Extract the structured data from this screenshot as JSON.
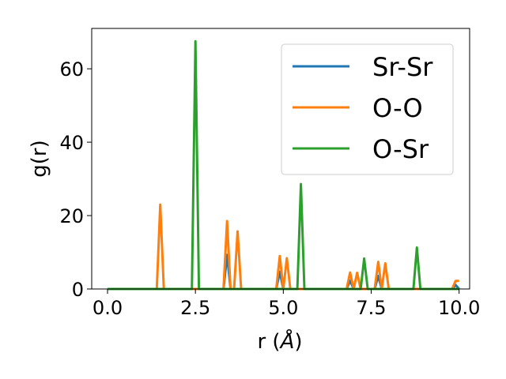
{
  "chart_data": {
    "type": "line",
    "xlabel_main": "r (",
    "xlabel_unit": "Å",
    "xlabel_close": ")",
    "ylabel": "g(r)",
    "xlim": [
      -0.45,
      10.3
    ],
    "ylim": [
      0,
      71
    ],
    "xticks": [
      0.0,
      2.5,
      5.0,
      7.5,
      10.0
    ],
    "xtick_labels": [
      "0.0",
      "2.5",
      "5.0",
      "7.5",
      "10.0"
    ],
    "yticks": [
      0,
      20,
      40,
      60
    ],
    "ytick_labels": [
      "0",
      "20",
      "40",
      "60"
    ],
    "grid": false,
    "legend_position": "top-right",
    "series": [
      {
        "name": "Sr-Sr",
        "color": "#1f77b4",
        "x": [
          0.0,
          3.3,
          3.4,
          3.5,
          4.8,
          4.9,
          5.0,
          6.8,
          6.9,
          7.0,
          7.6,
          7.7,
          7.8,
          9.8,
          9.9,
          10.0
        ],
        "y": [
          0,
          0,
          9.3,
          0,
          0,
          4.7,
          0,
          0,
          2.3,
          0,
          0,
          3.6,
          0,
          0,
          1.1,
          0
        ]
      },
      {
        "name": "O-O",
        "color": "#ff7f0e",
        "x": [
          0.0,
          1.4,
          1.5,
          1.6,
          3.3,
          3.4,
          3.5,
          3.6,
          3.7,
          3.8,
          4.8,
          4.9,
          5.0,
          5.1,
          5.2,
          6.8,
          6.9,
          7.0,
          7.1,
          7.2,
          7.6,
          7.7,
          7.8,
          7.9,
          8.0,
          9.8,
          9.9,
          10.0
        ],
        "y": [
          0,
          0,
          23,
          0,
          0,
          18.5,
          0,
          0,
          15.7,
          0,
          0,
          9.0,
          0,
          8.4,
          0,
          0,
          4.5,
          0,
          4.4,
          0,
          0,
          7.4,
          0,
          7.0,
          0,
          0,
          2.2,
          2.2
        ]
      },
      {
        "name": "O-Sr",
        "color": "#2ca02c",
        "x": [
          0.0,
          2.4,
          2.5,
          2.6,
          5.4,
          5.5,
          5.6,
          7.2,
          7.3,
          7.4,
          8.7,
          8.8,
          8.9,
          10.0
        ],
        "y": [
          0,
          0,
          67.5,
          0,
          0,
          28.6,
          0,
          0,
          8.3,
          0,
          0,
          11.3,
          0,
          0
        ]
      }
    ]
  }
}
